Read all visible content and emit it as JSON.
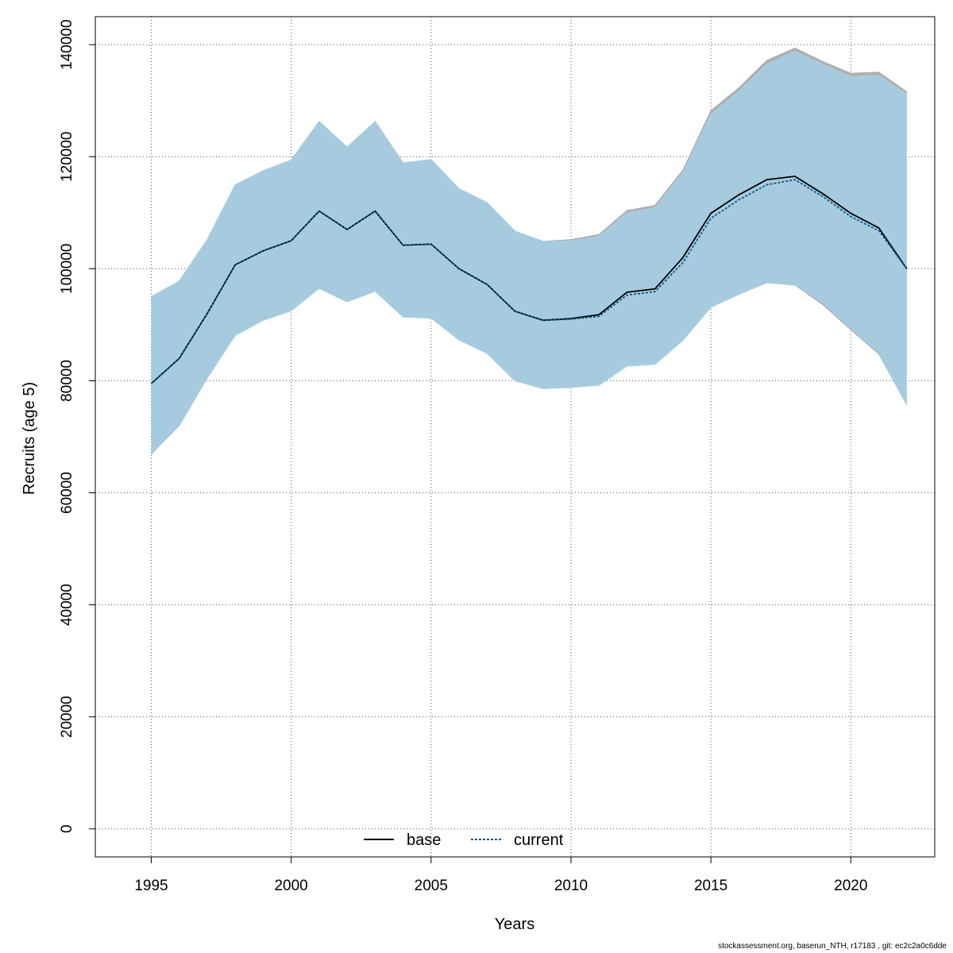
{
  "chart_data": {
    "type": "area",
    "xlabel": "Years",
    "ylabel": "Recruits (age 5)",
    "xlim": [
      1993,
      2023
    ],
    "ylim": [
      -5000,
      145000
    ],
    "x_ticks": [
      1995,
      2000,
      2005,
      2010,
      2015,
      2020
    ],
    "y_ticks": [
      0,
      20000,
      40000,
      60000,
      80000,
      100000,
      120000,
      140000
    ],
    "grid": true,
    "legend_position": "bottom-center",
    "x": [
      1995,
      1996,
      1997,
      1998,
      1999,
      2000,
      2001,
      2002,
      2003,
      2004,
      2005,
      2006,
      2007,
      2008,
      2009,
      2010,
      2011,
      2012,
      2013,
      2014,
      2015,
      2016,
      2017,
      2018,
      2019,
      2020,
      2021,
      2022
    ],
    "series": [
      {
        "name": "base",
        "line_color": "#000000",
        "line_style": "solid",
        "band_color": "#a8a8a8",
        "values": [
          79500,
          84000,
          92000,
          100700,
          103200,
          105000,
          110300,
          107000,
          110300,
          104200,
          104400,
          100000,
          97200,
          92400,
          90800,
          91100,
          91800,
          95800,
          96400,
          102000,
          109900,
          113200,
          115900,
          116500,
          113400,
          109900,
          107300,
          100000
        ],
        "lower": [
          66900,
          72000,
          80500,
          88100,
          90800,
          92500,
          96500,
          94100,
          96000,
          91400,
          91200,
          87300,
          84900,
          80000,
          78600,
          78900,
          79300,
          82900,
          83100,
          87400,
          93500,
          95600,
          97500,
          97100,
          93600,
          89100,
          84800,
          75700
        ],
        "upper": [
          95000,
          97800,
          105200,
          115000,
          117500,
          119400,
          126300,
          121700,
          126300,
          118900,
          119500,
          114300,
          111800,
          106700,
          104900,
          105200,
          106100,
          110400,
          111300,
          117600,
          128200,
          132300,
          137200,
          139400,
          137000,
          134900,
          135100,
          131600
        ]
      },
      {
        "name": "current",
        "line_color": "#045a8d",
        "line_style": "dotted",
        "band_color": "#a6cee3",
        "values": [
          79500,
          84000,
          92000,
          100700,
          103200,
          105000,
          110300,
          107000,
          110300,
          104200,
          104400,
          100000,
          97200,
          92400,
          90800,
          91000,
          91500,
          95300,
          95900,
          101100,
          109000,
          112300,
          115000,
          115900,
          112900,
          109300,
          106800,
          100000
        ],
        "lower": [
          66900,
          72000,
          80500,
          88100,
          90800,
          92500,
          96500,
          94100,
          96000,
          91400,
          91200,
          87300,
          84900,
          80000,
          78600,
          78800,
          79200,
          82600,
          82900,
          87200,
          93100,
          95400,
          97500,
          97200,
          93900,
          89300,
          85000,
          75700
        ],
        "upper": [
          95000,
          97800,
          105200,
          115000,
          117500,
          119400,
          126300,
          121700,
          126300,
          118900,
          119500,
          114300,
          111800,
          106700,
          104900,
          105000,
          105800,
          110000,
          110900,
          117200,
          127600,
          131700,
          136500,
          138800,
          136500,
          134300,
          134500,
          131200
        ]
      }
    ]
  },
  "footer": "stockassessment.org, baserun_NTH, r17183 , git: ec2c2a0c6dde"
}
